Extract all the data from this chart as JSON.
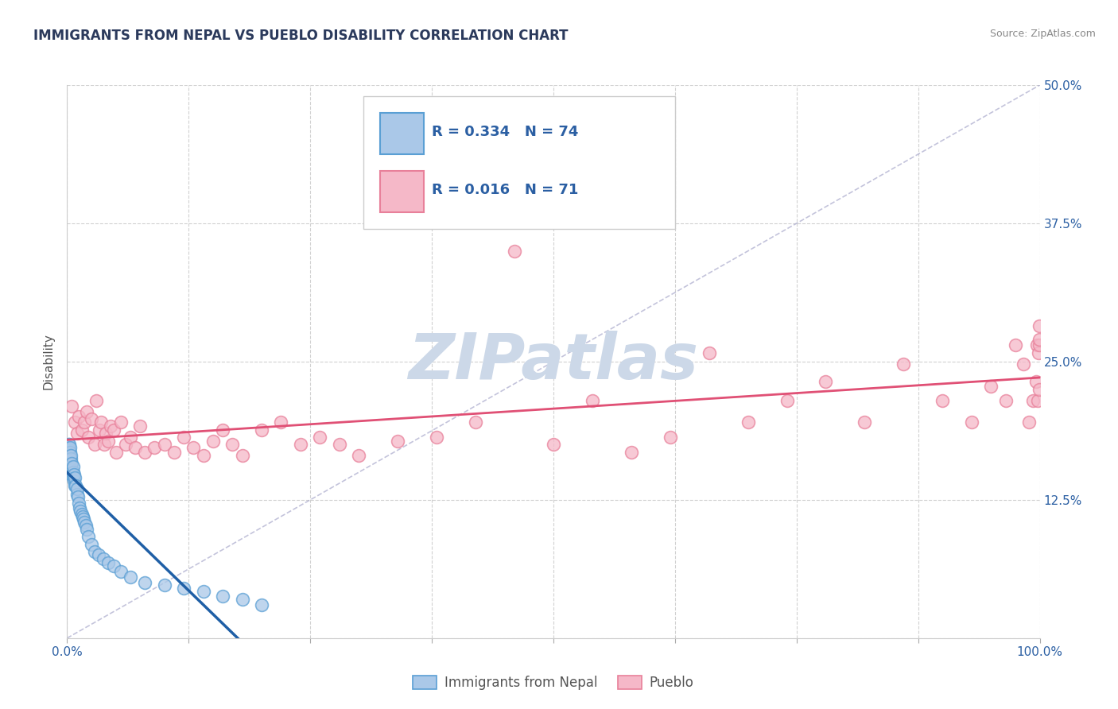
{
  "title": "IMMIGRANTS FROM NEPAL VS PUEBLO DISABILITY CORRELATION CHART",
  "source_text": "Source: ZipAtlas.com",
  "ylabel": "Disability",
  "xlim": [
    0.0,
    1.0
  ],
  "ylim": [
    0.0,
    0.5
  ],
  "y_ticks": [
    0.0,
    0.125,
    0.25,
    0.375,
    0.5
  ],
  "y_tick_labels_right": [
    "",
    "12.5%",
    "25.0%",
    "37.5%",
    "50.0%"
  ],
  "x_tick_labels_shown": [
    "0.0%",
    "100.0%"
  ],
  "grid_color": "#cccccc",
  "background_color": "#ffffff",
  "nepal_color_edge": "#5a9fd4",
  "nepal_color_fill": "#aac8e8",
  "pueblo_color_edge": "#e8809a",
  "pueblo_color_fill": "#f5b8c8",
  "nepal_R": 0.334,
  "nepal_N": 74,
  "pueblo_R": 0.016,
  "pueblo_N": 71,
  "nepal_trend_color": "#1f5fa6",
  "pueblo_trend_color": "#e05075",
  "diag_color": "#aaaacc",
  "nepal_x": [
    0.0005,
    0.0005,
    0.0008,
    0.0008,
    0.0008,
    0.001,
    0.001,
    0.001,
    0.001,
    0.001,
    0.001,
    0.001,
    0.001,
    0.001,
    0.0015,
    0.0015,
    0.002,
    0.002,
    0.002,
    0.002,
    0.002,
    0.002,
    0.002,
    0.002,
    0.003,
    0.003,
    0.003,
    0.003,
    0.003,
    0.003,
    0.004,
    0.004,
    0.004,
    0.004,
    0.004,
    0.005,
    0.005,
    0.005,
    0.006,
    0.006,
    0.006,
    0.007,
    0.007,
    0.008,
    0.008,
    0.009,
    0.01,
    0.01,
    0.011,
    0.012,
    0.013,
    0.014,
    0.015,
    0.016,
    0.017,
    0.018,
    0.019,
    0.02,
    0.022,
    0.025,
    0.028,
    0.032,
    0.037,
    0.042,
    0.048,
    0.055,
    0.065,
    0.08,
    0.1,
    0.12,
    0.14,
    0.16,
    0.18,
    0.2
  ],
  "nepal_y": [
    0.165,
    0.17,
    0.162,
    0.168,
    0.172,
    0.155,
    0.158,
    0.16,
    0.162,
    0.165,
    0.168,
    0.17,
    0.172,
    0.175,
    0.16,
    0.165,
    0.155,
    0.158,
    0.16,
    0.162,
    0.165,
    0.168,
    0.17,
    0.175,
    0.155,
    0.158,
    0.162,
    0.165,
    0.168,
    0.172,
    0.152,
    0.155,
    0.158,
    0.162,
    0.165,
    0.148,
    0.152,
    0.158,
    0.145,
    0.15,
    0.155,
    0.142,
    0.148,
    0.138,
    0.145,
    0.138,
    0.13,
    0.135,
    0.128,
    0.122,
    0.118,
    0.115,
    0.112,
    0.11,
    0.108,
    0.105,
    0.102,
    0.098,
    0.092,
    0.085,
    0.078,
    0.075,
    0.072,
    0.068,
    0.065,
    0.06,
    0.055,
    0.05,
    0.048,
    0.045,
    0.042,
    0.038,
    0.035,
    0.03
  ],
  "pueblo_x": [
    0.005,
    0.008,
    0.01,
    0.012,
    0.015,
    0.018,
    0.02,
    0.022,
    0.025,
    0.028,
    0.03,
    0.033,
    0.035,
    0.038,
    0.04,
    0.042,
    0.045,
    0.048,
    0.05,
    0.055,
    0.06,
    0.065,
    0.07,
    0.075,
    0.08,
    0.09,
    0.1,
    0.11,
    0.12,
    0.13,
    0.14,
    0.15,
    0.16,
    0.17,
    0.18,
    0.2,
    0.22,
    0.24,
    0.26,
    0.28,
    0.3,
    0.34,
    0.38,
    0.42,
    0.46,
    0.5,
    0.54,
    0.58,
    0.62,
    0.66,
    0.7,
    0.74,
    0.78,
    0.82,
    0.86,
    0.9,
    0.93,
    0.95,
    0.965,
    0.975,
    0.983,
    0.989,
    0.993,
    0.996,
    0.997,
    0.998,
    0.999,
    0.9993,
    0.9995,
    0.9997,
    0.9999
  ],
  "pueblo_y": [
    0.21,
    0.195,
    0.185,
    0.2,
    0.188,
    0.195,
    0.205,
    0.182,
    0.198,
    0.175,
    0.215,
    0.188,
    0.195,
    0.175,
    0.185,
    0.178,
    0.192,
    0.188,
    0.168,
    0.195,
    0.175,
    0.182,
    0.172,
    0.192,
    0.168,
    0.172,
    0.175,
    0.168,
    0.182,
    0.172,
    0.165,
    0.178,
    0.188,
    0.175,
    0.165,
    0.188,
    0.195,
    0.175,
    0.182,
    0.175,
    0.165,
    0.178,
    0.182,
    0.195,
    0.35,
    0.175,
    0.215,
    0.168,
    0.182,
    0.258,
    0.195,
    0.215,
    0.232,
    0.195,
    0.248,
    0.215,
    0.195,
    0.228,
    0.215,
    0.265,
    0.248,
    0.195,
    0.215,
    0.232,
    0.265,
    0.215,
    0.258,
    0.225,
    0.265,
    0.282,
    0.27
  ],
  "watermark_text": "ZIPatlas",
  "watermark_color": "#ccd8e8",
  "legend_R_color": "#2b5fa3",
  "legend_border_color": "#cccccc",
  "title_color": "#2b3a5c",
  "source_color": "#888888",
  "tick_color": "#2b5fa3",
  "axis_label_color": "#555555"
}
